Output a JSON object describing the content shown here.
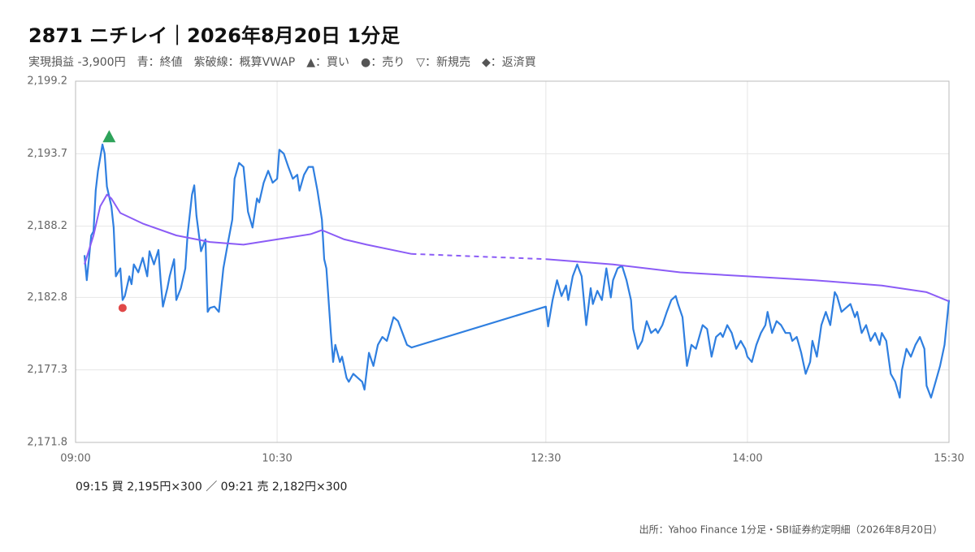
{
  "chart_data": {
    "type": "line",
    "title": "2871 ニチレイ｜2026年8月20日 1分足",
    "subtitle": "実現損益 -3,900円　青：終値　紫破線：概算VWAP　▲：買い　●：売り　▽：新規売　◆：返済買",
    "note": "09:15 買 2,195円×300 ／ 09:21 売 2,182円×300",
    "source": "出所：Yahoo Finance 1分足・SBI証券約定明細（2026年8月20日）",
    "xlim": [
      "09:00",
      "15:30"
    ],
    "xticks": [
      "09:00",
      "10:30",
      "12:30",
      "14:00",
      "15:30"
    ],
    "ylim": [
      2171.8,
      2199.2
    ],
    "yticks": [
      {
        "value": 2171.8,
        "label": "2,171.8"
      },
      {
        "value": 2177.3,
        "label": "2,177.3"
      },
      {
        "value": 2182.8,
        "label": "2,182.8"
      },
      {
        "value": 2188.2,
        "label": "2,188.2"
      },
      {
        "value": 2193.7,
        "label": "2,193.7"
      },
      {
        "value": 2199.2,
        "label": "2,199.2"
      }
    ],
    "grid": true,
    "series": [
      {
        "color": "#2f7fe0",
        "x": [
          "09:04",
          "09:05",
          "09:07",
          "09:08",
          "09:09",
          "09:10",
          "09:12",
          "09:13",
          "09:14",
          "09:16",
          "09:17",
          "09:18",
          "09:20",
          "09:21",
          "09:22",
          "09:24",
          "09:25",
          "09:26",
          "09:28",
          "09:30",
          "09:32",
          "09:33",
          "09:35",
          "09:37",
          "09:38",
          "09:39",
          "09:41",
          "09:42",
          "09:44",
          "09:45",
          "09:47",
          "09:49",
          "09:50",
          "09:52",
          "09:53",
          "09:54",
          "09:56",
          "09:58",
          "09:59",
          "10:00",
          "10:02",
          "10:04",
          "10:06",
          "10:08",
          "10:10",
          "10:11",
          "10:13",
          "10:15",
          "10:17",
          "10:19",
          "10:21",
          "10:22",
          "10:24",
          "10:26",
          "10:28",
          "10:30",
          "10:31",
          "10:33",
          "10:35",
          "10:37",
          "10:39",
          "10:40",
          "10:42",
          "10:44",
          "10:46",
          "10:48",
          "10:50",
          "10:51",
          "10:52",
          "10:54",
          "10:55",
          "10:56",
          "10:58",
          "10:59",
          "11:01",
          "11:02",
          "11:04",
          "11:06",
          "11:08",
          "11:09",
          "11:11",
          "11:13",
          "11:15",
          "11:17",
          "11:19",
          "11:20",
          "11:22",
          "11:24",
          "11:26",
          "11:28",
          "11:30",
          "12:30",
          "12:31",
          "12:33",
          "12:35",
          "12:37",
          "12:39",
          "12:40",
          "12:42",
          "12:44",
          "12:46",
          "12:48",
          "12:50",
          "12:51",
          "12:53",
          "12:55",
          "12:57",
          "12:59",
          "13:00",
          "13:02",
          "13:04",
          "13:06",
          "13:08",
          "13:09",
          "13:11",
          "13:13",
          "13:15",
          "13:17",
          "13:19",
          "13:20",
          "13:22",
          "13:24",
          "13:26",
          "13:28",
          "13:29",
          "13:31",
          "13:33",
          "13:35",
          "13:37",
          "13:39",
          "13:40",
          "13:42",
          "13:44",
          "13:46",
          "13:48",
          "13:49",
          "13:51",
          "13:53",
          "13:55",
          "13:57",
          "13:59",
          "14:00",
          "14:02",
          "14:04",
          "14:06",
          "14:08",
          "14:09",
          "14:11",
          "14:13",
          "14:15",
          "14:17",
          "14:19",
          "14:20",
          "14:22",
          "14:24",
          "14:26",
          "14:28",
          "14:29",
          "14:31",
          "14:33",
          "14:35",
          "14:37",
          "14:39",
          "14:40",
          "14:42",
          "14:44",
          "14:46",
          "14:48",
          "14:49",
          "14:51",
          "14:53",
          "14:55",
          "14:57",
          "14:59",
          "15:00",
          "15:02",
          "15:04",
          "15:06",
          "15:08",
          "15:09",
          "15:11",
          "15:13",
          "15:15",
          "15:17",
          "15:19",
          "15:20",
          "15:22",
          "15:24",
          "15:26",
          "15:28",
          "15:30"
        ],
        "values": [
          2186.0,
          2184.1,
          2187.5,
          2187.8,
          2190.9,
          2192.4,
          2194.4,
          2193.7,
          2191.2,
          2189.7,
          2188.1,
          2184.4,
          2185.0,
          2182.6,
          2182.9,
          2184.4,
          2183.8,
          2185.3,
          2184.7,
          2185.8,
          2184.4,
          2186.3,
          2185.3,
          2186.4,
          2184.1,
          2182.1,
          2183.5,
          2184.4,
          2185.7,
          2182.6,
          2183.5,
          2185.0,
          2187.5,
          2190.6,
          2191.3,
          2189.0,
          2186.3,
          2187.2,
          2181.7,
          2182.0,
          2182.1,
          2181.7,
          2185.0,
          2186.9,
          2188.7,
          2191.8,
          2193.0,
          2192.7,
          2189.3,
          2188.1,
          2190.3,
          2190.0,
          2191.5,
          2192.4,
          2191.5,
          2191.8,
          2194.0,
          2193.7,
          2192.7,
          2191.8,
          2192.1,
          2190.9,
          2192.1,
          2192.7,
          2192.7,
          2190.9,
          2188.7,
          2185.7,
          2185.0,
          2180.1,
          2177.9,
          2179.2,
          2177.9,
          2178.3,
          2176.7,
          2176.4,
          2177.0,
          2176.7,
          2176.4,
          2175.8,
          2178.6,
          2177.6,
          2179.2,
          2179.8,
          2179.5,
          2180.1,
          2181.3,
          2181.0,
          2180.1,
          2179.2,
          2179.0,
          2182.1,
          2180.6,
          2182.6,
          2184.1,
          2182.9,
          2183.7,
          2182.6,
          2184.4,
          2185.3,
          2184.4,
          2180.7,
          2183.5,
          2182.3,
          2183.3,
          2182.6,
          2185.0,
          2182.8,
          2184.1,
          2185.0,
          2185.2,
          2184.1,
          2182.6,
          2180.4,
          2178.9,
          2179.5,
          2181.0,
          2180.1,
          2180.4,
          2180.1,
          2180.7,
          2181.7,
          2182.6,
          2182.9,
          2182.3,
          2181.3,
          2177.6,
          2179.2,
          2178.9,
          2180.1,
          2180.7,
          2180.4,
          2178.3,
          2179.8,
          2180.1,
          2179.8,
          2180.7,
          2180.1,
          2178.9,
          2179.5,
          2178.9,
          2178.3,
          2177.9,
          2179.2,
          2180.1,
          2180.7,
          2181.7,
          2180.1,
          2181.0,
          2180.7,
          2180.1,
          2180.1,
          2179.5,
          2179.8,
          2178.6,
          2177.0,
          2177.9,
          2179.5,
          2178.3,
          2180.7,
          2181.7,
          2180.7,
          2183.2,
          2182.9,
          2181.7,
          2182.0,
          2182.3,
          2181.3,
          2181.7,
          2180.1,
          2180.7,
          2179.5,
          2180.1,
          2179.2,
          2180.1,
          2179.5,
          2177.0,
          2176.4,
          2175.2,
          2177.3,
          2178.9,
          2178.3,
          2179.2,
          2179.8,
          2178.9,
          2176.1,
          2175.2,
          2176.4,
          2177.6,
          2179.2,
          2182.6
        ]
      },
      {
        "color": "#8b5cf6",
        "x": [
          "09:04",
          "09:08",
          "09:11",
          "09:14",
          "09:16",
          "09:20",
          "09:30",
          "09:45",
          "10:00",
          "10:15",
          "10:30",
          "10:45",
          "10:50",
          "11:00",
          "11:10",
          "11:30",
          "12:30",
          "13:00",
          "13:30",
          "14:00",
          "14:30",
          "15:00",
          "15:20",
          "15:30"
        ],
        "values": [
          2185.3,
          2187.5,
          2189.7,
          2190.6,
          2190.3,
          2189.2,
          2188.4,
          2187.5,
          2187.0,
          2186.8,
          2187.2,
          2187.6,
          2187.9,
          2187.2,
          2186.8,
          2186.1,
          2185.7,
          2185.3,
          2184.7,
          2184.4,
          2184.1,
          2183.7,
          2183.2,
          2182.5
        ]
      }
    ],
    "markers": [
      {
        "x": "09:15",
        "value": 2195,
        "shape": "triangle",
        "color": "#2ea35a"
      },
      {
        "x": "09:21",
        "value": 2182,
        "shape": "circle",
        "color": "#e04848"
      }
    ]
  }
}
